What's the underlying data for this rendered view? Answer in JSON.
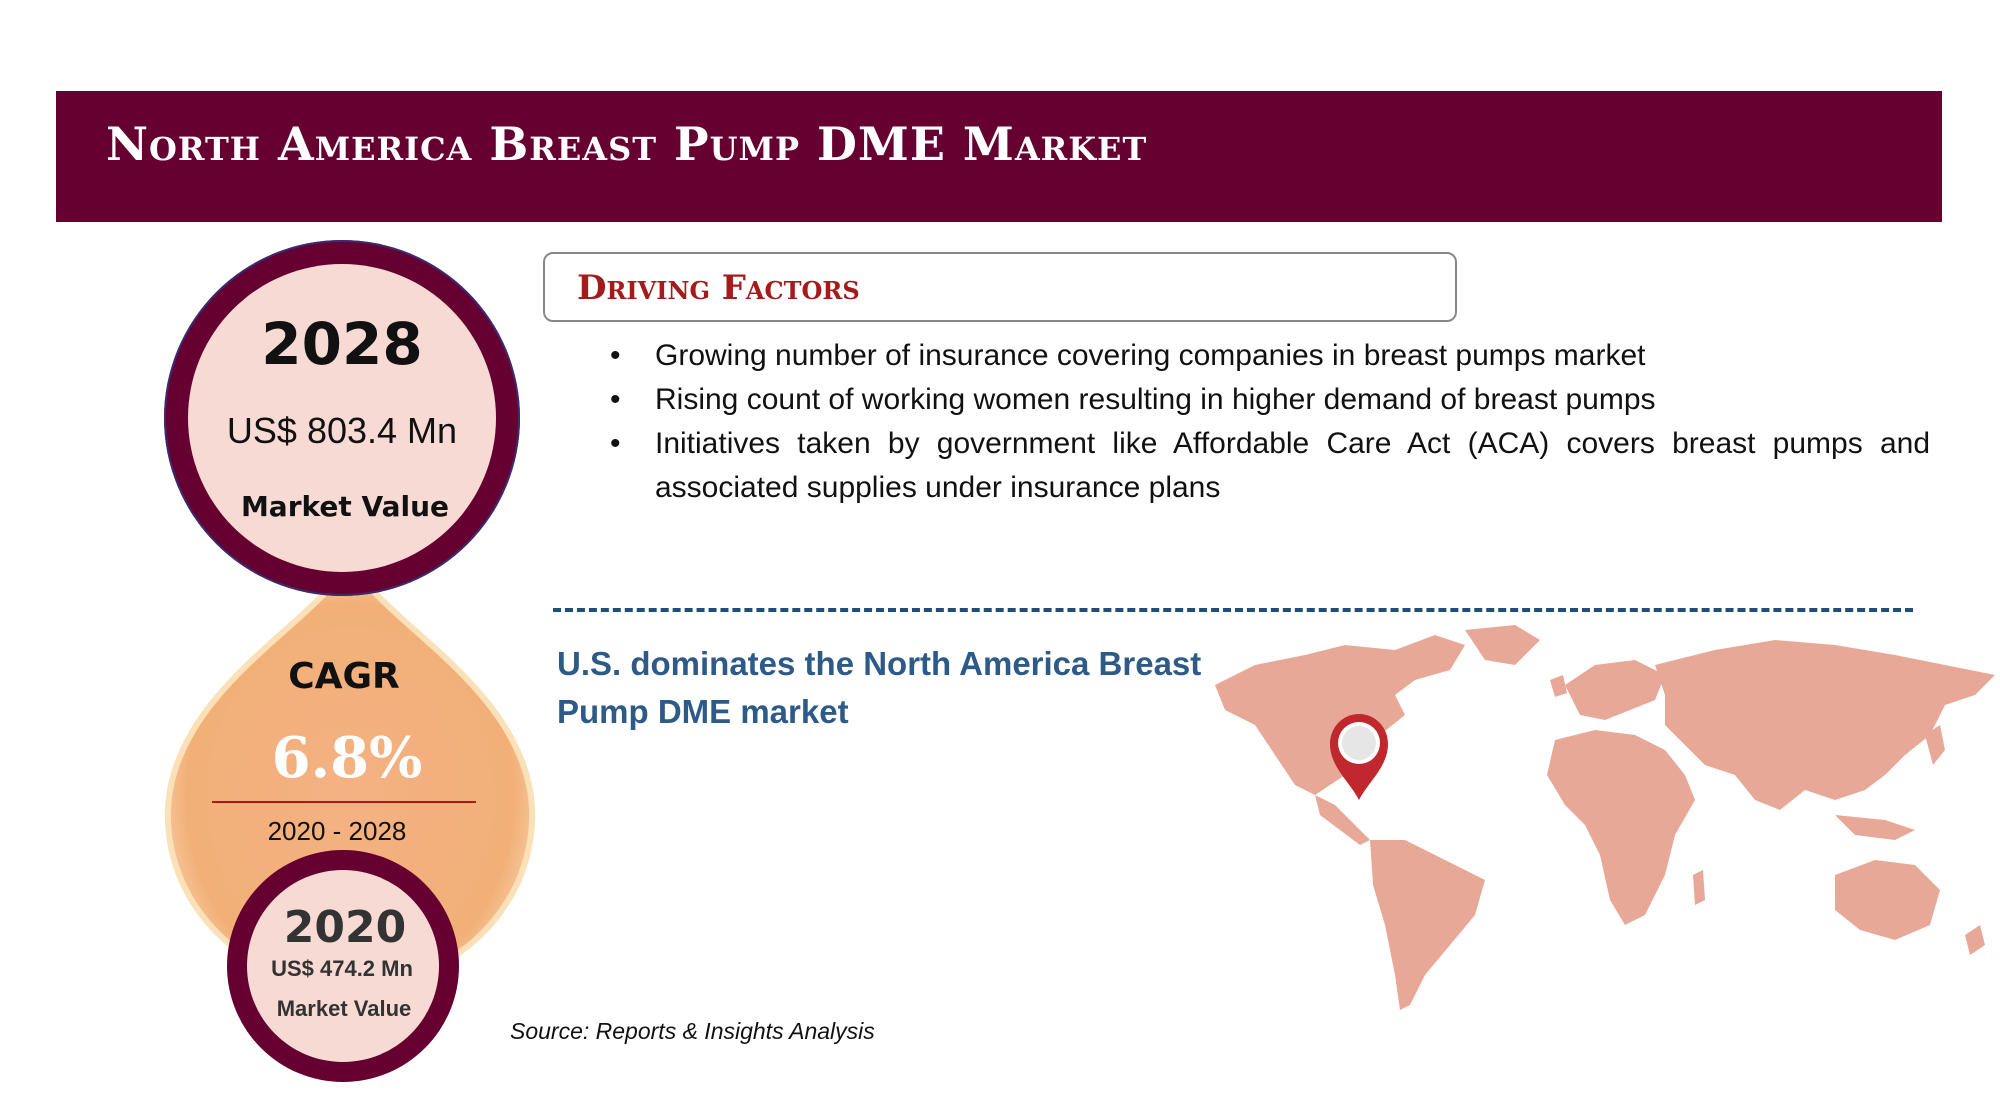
{
  "header": {
    "title": "North America Breast Pump DME Market"
  },
  "market_2028": {
    "year": "2028",
    "value": "US$ 803.4 Mn",
    "label": "Market Value"
  },
  "cagr": {
    "label": "CAGR",
    "value": "6.8%",
    "period": "2020 - 2028"
  },
  "market_2020": {
    "year": "2020",
    "value": "US$ 474.2 Mn",
    "label": "Market Value"
  },
  "driving_factors": {
    "title": "Driving Factors",
    "items": [
      "Growing number of insurance covering companies in breast pumps market",
      "Rising count of working women resulting in higher demand of breast pumps",
      "Initiatives taken by government like Affordable Care Act (ACA) covers breast pumps and associated supplies under insurance plans"
    ],
    "bullet": "•"
  },
  "dominance": {
    "text": "U.S. dominates the North America Breast Pump DME market"
  },
  "source": "Source: Reports & Insights Analysis",
  "colors": {
    "banner": "#650030",
    "circle_fill": "#f8dad4",
    "drop": "#f4b183",
    "map": "#e8a898",
    "pin": "#c0282e",
    "accent_text": "#2e5a88",
    "df_title": "#a51a1a"
  },
  "icons": {
    "map": "world-map-icon",
    "pin": "location-pin-icon"
  }
}
